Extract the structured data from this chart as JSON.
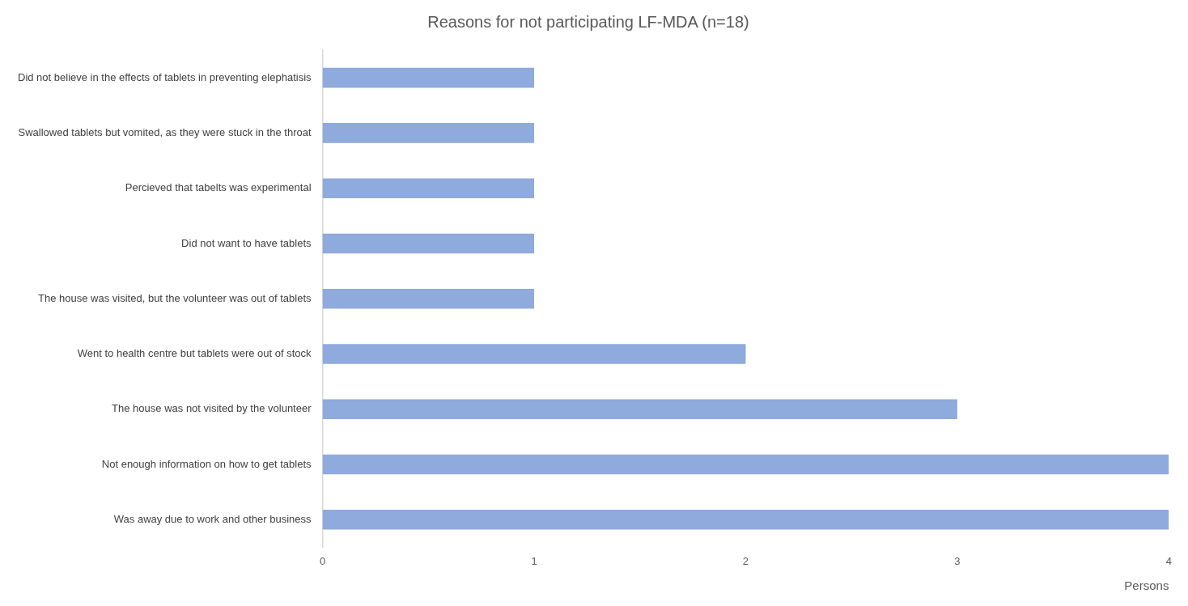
{
  "chart_data": {
    "type": "bar",
    "orientation": "horizontal",
    "title": "Reasons for not participating LF-MDA (n=18)",
    "xlabel": "Persons",
    "categories": [
      "Did not believe in the effects of tablets in preventing elephatisis",
      "Swallowed tablets but vomited, as they were stuck in the throat",
      "Percieved that tabelts was experimental",
      "Did not want to have tablets",
      "The house was visited, but the volunteer was out of tablets",
      "Went to health centre but tablets were out of stock",
      "The house was not visited by the volunteer",
      "Not enough information on how to get tablets",
      "Was away due to work and other business"
    ],
    "values": [
      1,
      1,
      1,
      1,
      1,
      2,
      3,
      4,
      4
    ],
    "color": "#8faadc",
    "xlim": [
      0,
      4
    ],
    "xticks": [
      0,
      1,
      2,
      3,
      4
    ],
    "grid": false,
    "legend": false
  }
}
